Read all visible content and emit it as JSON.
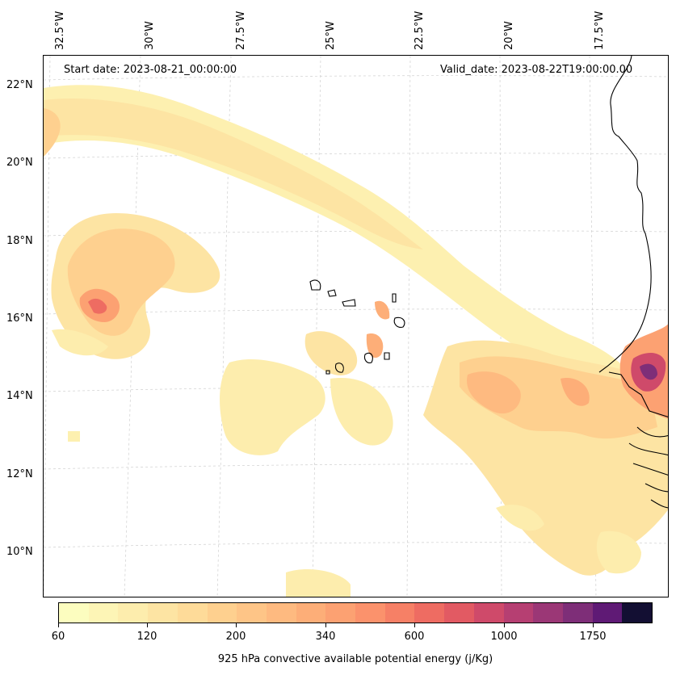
{
  "header": {
    "start_date": "Start date: 2023-08-21_00:00:00",
    "valid_date": "Valid_date: 2023-08-22T19:00:00.00"
  },
  "longitude_labels": [
    "32.5°W",
    "30°W",
    "27.5°W",
    "25°W",
    "22.5°W",
    "20°W",
    "17.5°W"
  ],
  "latitude_labels": [
    "22°N",
    "20°N",
    "18°N",
    "16°N",
    "14°N",
    "12°N",
    "10°N"
  ],
  "colorbar": {
    "title": "925 hPa convective available potential energy (j/Kg)",
    "tick_labels": [
      "60",
      "120",
      "200",
      "340",
      "600",
      "1000",
      "1750"
    ],
    "colors": [
      "#fcfdbf",
      "#fdf5b6",
      "#fdedad",
      "#fde4a3",
      "#fedb99",
      "#fed08f",
      "#fec587",
      "#feba80",
      "#fdae78",
      "#fca172",
      "#fb926c",
      "#f68066",
      "#ee6c62",
      "#e25a63",
      "#cf4a6a",
      "#b63f72",
      "#9b3776",
      "#7e2e78",
      "#5f1a75",
      "#130f33"
    ]
  },
  "map_colors": {
    "coast": "#000000",
    "grid": "#c8c8c8"
  }
}
